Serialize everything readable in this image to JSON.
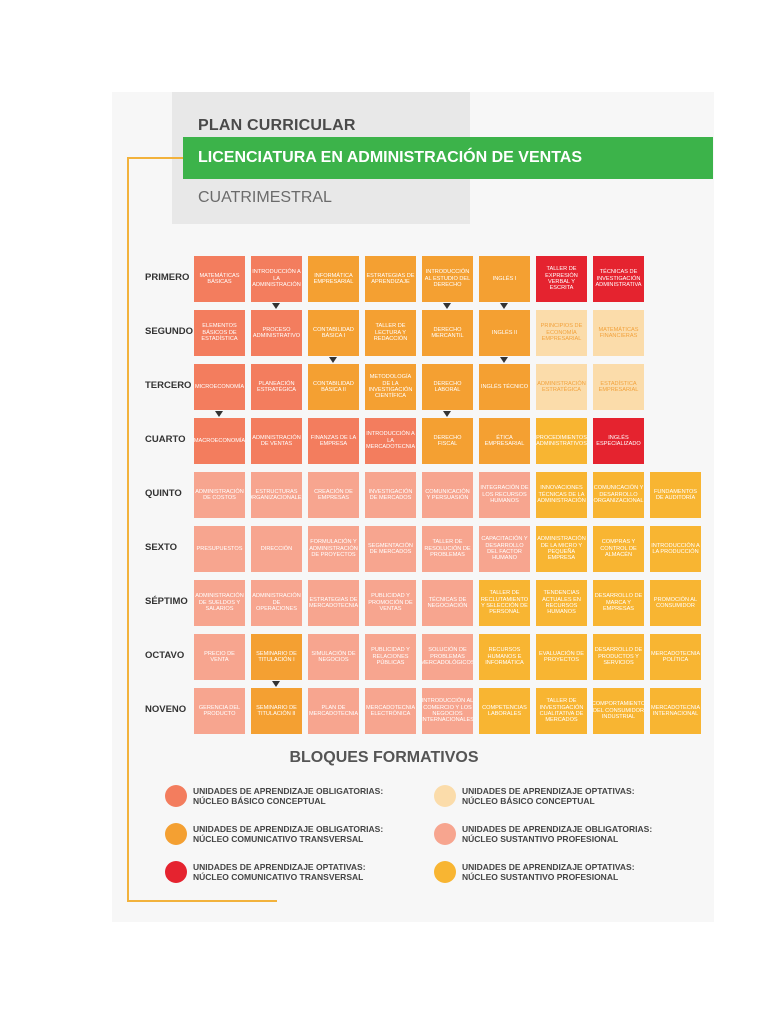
{
  "header": {
    "plan": "PLAN CURRICULAR",
    "degree": "LICENCIATURA EN ADMINISTRACIÓN DE VENTAS",
    "modality": "CUATRIMESTRAL"
  },
  "colors": {
    "A": "#f37d5e",
    "B": "#f4a032",
    "C": "#e5232f",
    "D": "#fbdcaa",
    "E": "#f7a58f",
    "F": "#f8b532"
  },
  "rows": [
    {
      "label": "PRIMERO",
      "cells": [
        {
          "text": "Matemáticas básicas",
          "b": "A"
        },
        {
          "text": "Introducción a la administración",
          "b": "A"
        },
        {
          "text": "Informática empresarial",
          "b": "B"
        },
        {
          "text": "Estrategias de aprendizaje",
          "b": "B"
        },
        {
          "text": "Introducción al estudio del derecho",
          "b": "B"
        },
        {
          "text": "Inglés I",
          "b": "B"
        },
        {
          "text": "Taller de expresión verbal y escrita",
          "b": "C"
        },
        {
          "text": "Técnicas de investigación administrativa",
          "b": "C"
        }
      ]
    },
    {
      "label": "SEGUNDO",
      "cells": [
        {
          "text": "Elementos básicos de estadística",
          "b": "A"
        },
        {
          "text": "Proceso administrativo",
          "b": "A"
        },
        {
          "text": "Contabilidad básica I",
          "b": "B"
        },
        {
          "text": "Taller de lectura y redacción",
          "b": "B"
        },
        {
          "text": "Derecho mercantil",
          "b": "B"
        },
        {
          "text": "Inglés II",
          "b": "B"
        },
        {
          "text": "Principios de economía empresarial",
          "b": "D"
        },
        {
          "text": "Matemáticas financieras",
          "b": "D"
        }
      ]
    },
    {
      "label": "TERCERO",
      "cells": [
        {
          "text": "Microeconomía",
          "b": "A"
        },
        {
          "text": "Planeación estratégica",
          "b": "A"
        },
        {
          "text": "Contabilidad básica II",
          "b": "B"
        },
        {
          "text": "Metodología de la investigación científica",
          "b": "B"
        },
        {
          "text": "Derecho laboral",
          "b": "B"
        },
        {
          "text": "Inglés técnico",
          "b": "B"
        },
        {
          "text": "Administración estratégica",
          "b": "D"
        },
        {
          "text": "Estadística empresarial",
          "b": "D"
        }
      ]
    },
    {
      "label": "CUARTO",
      "cells": [
        {
          "text": "Macroeconomía",
          "b": "A"
        },
        {
          "text": "Administración de ventas",
          "b": "A"
        },
        {
          "text": "Finanzas de la empresa",
          "b": "A"
        },
        {
          "text": "Introducción a la mercadotecnia",
          "b": "A"
        },
        {
          "text": "Derecho fiscal",
          "b": "B"
        },
        {
          "text": "Ética empresarial",
          "b": "B"
        },
        {
          "text": "Procedimientos administrativos",
          "b": "F"
        },
        {
          "text": "Inglés especializado",
          "b": "C"
        }
      ]
    },
    {
      "label": "QUINTO",
      "cells": [
        {
          "text": "Administración de costos",
          "b": "E"
        },
        {
          "text": "Estructuras organizacionales",
          "b": "E"
        },
        {
          "text": "Creación de empresas",
          "b": "E"
        },
        {
          "text": "Investigación de mercados",
          "b": "E"
        },
        {
          "text": "Comunicación y persuasión",
          "b": "E"
        },
        {
          "text": "Integración de los recursos humanos",
          "b": "E"
        },
        {
          "text": "Innovaciones técnicas de la administración",
          "b": "F"
        },
        {
          "text": "Comunicación y desarrollo organizacional",
          "b": "F"
        },
        {
          "text": "Fundamentos de auditoría",
          "b": "F"
        }
      ]
    },
    {
      "label": "SEXTO",
      "cells": [
        {
          "text": "Presupuestos",
          "b": "E"
        },
        {
          "text": "Dirección",
          "b": "E"
        },
        {
          "text": "Formulación y administración de proyectos",
          "b": "E"
        },
        {
          "text": "Segmentación de mercados",
          "b": "E"
        },
        {
          "text": "Taller de resolución de problemas",
          "b": "E"
        },
        {
          "text": "Capacitación y desarrollo del factor humano",
          "b": "E"
        },
        {
          "text": "Administración de la micro y pequeña empresa",
          "b": "F"
        },
        {
          "text": "Compras y control de almacén",
          "b": "F"
        },
        {
          "text": "Introducción a la producción",
          "b": "F"
        }
      ]
    },
    {
      "label": "SÉPTIMO",
      "cells": [
        {
          "text": "Administración de sueldos y salarios",
          "b": "E"
        },
        {
          "text": "Administración de operaciones",
          "b": "E"
        },
        {
          "text": "Estrategias de mercadotecnia",
          "b": "E"
        },
        {
          "text": "Publicidad y promoción de ventas",
          "b": "E"
        },
        {
          "text": "Técnicas de negociación",
          "b": "E"
        },
        {
          "text": "Taller de reclutamiento y selección de personal",
          "b": "F"
        },
        {
          "text": "Tendencias actuales en recursos humanos",
          "b": "F"
        },
        {
          "text": "Desarrollo de marca y empresas",
          "b": "F"
        },
        {
          "text": "Promoción al consumidor",
          "b": "F"
        }
      ]
    },
    {
      "label": "OCTAVO",
      "cells": [
        {
          "text": "Precio de venta",
          "b": "E"
        },
        {
          "text": "Seminario de titulación I",
          "b": "B"
        },
        {
          "text": "Simulación de negocios",
          "b": "E"
        },
        {
          "text": "Publicidad y relaciones públicas",
          "b": "E"
        },
        {
          "text": "Solución de problemas mercadológicos",
          "b": "E"
        },
        {
          "text": "Recursos humanos e informática",
          "b": "F"
        },
        {
          "text": "Evaluación de proyectos",
          "b": "F"
        },
        {
          "text": "Desarrollo de productos y servicios",
          "b": "F"
        },
        {
          "text": "Mercadotecnia política",
          "b": "F"
        }
      ]
    },
    {
      "label": "NOVENO",
      "cells": [
        {
          "text": "Gerencia del producto",
          "b": "E"
        },
        {
          "text": "Seminario de titulación II",
          "b": "B"
        },
        {
          "text": "Plan de mercadotecnia",
          "b": "E"
        },
        {
          "text": "Mercadotecnia electrónica",
          "b": "E"
        },
        {
          "text": "Introducción al comercio y los negocios internacionales",
          "b": "E"
        },
        {
          "text": "Competencias laborales",
          "b": "F"
        },
        {
          "text": "Taller de investigación cualitativa de mercados",
          "b": "F"
        },
        {
          "text": "Comportamiento del consumidor industrial",
          "b": "F"
        },
        {
          "text": "Mercadotecnia internacional",
          "b": "F"
        }
      ]
    }
  ],
  "blocks": {
    "title": "BLOQUES FORMATIVOS",
    "items": [
      {
        "key": "A",
        "line1": "UNIDADES DE APRENDIZAJE OBLIGATORIAS:",
        "line2": "NÚCLEO BÁSICO CONCEPTUAL"
      },
      {
        "key": "D",
        "line1": "UNIDADES DE APRENDIZAJE OPTATIVAS:",
        "line2": "NÚCLEO BÁSICO CONCEPTUAL"
      },
      {
        "key": "B",
        "line1": "UNIDADES DE APRENDIZAJE OBLIGATORIAS:",
        "line2": "NÚCLEO COMUNICATIVO TRANSVERSAL"
      },
      {
        "key": "E",
        "line1": "UNIDADES DE APRENDIZAJE OBLIGATORIAS:",
        "line2": "NÚCLEO SUSTANTIVO PROFESIONAL"
      },
      {
        "key": "C",
        "line1": "UNIDADES DE APRENDIZAJE OPTATIVAS:",
        "line2": "NÚCLEO COMUNICATIVO TRANSVERSAL"
      },
      {
        "key": "F",
        "line1": "UNIDADES DE APRENDIZAJE OPTATIVAS:",
        "line2": "NÚCLEO SUSTANTIVO PROFESIONAL"
      }
    ]
  }
}
